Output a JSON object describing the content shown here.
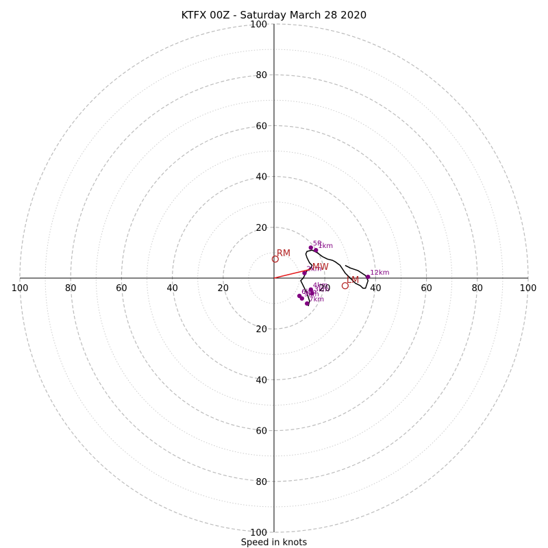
{
  "chart_data": {
    "type": "line",
    "title": "KTFX 00Z - Saturday March 28 2020",
    "xlabel": "Speed in knots",
    "ylabel": "",
    "xlim": [
      -100,
      100
    ],
    "ylim": [
      -100,
      100
    ],
    "ring_major": [
      20,
      40,
      60,
      80,
      100
    ],
    "ring_minor": [
      10,
      30,
      50,
      70,
      90
    ],
    "tick_labels": [
      "20",
      "40",
      "60",
      "80",
      "100"
    ],
    "colors": {
      "hodograph": "#000000",
      "points": "#800080",
      "motion": "#b22222",
      "mean_wind_vector": "#e41a1c",
      "major_ring": "#bbbbbb",
      "minor_ring": "#cccccc",
      "axes": "#000000"
    },
    "hodograph": {
      "x": [
        13.5,
        14,
        13,
        12,
        10.5,
        11.5,
        12.5,
        13,
        14.5,
        15,
        14,
        13,
        12.5,
        13,
        15,
        17,
        19,
        21,
        23,
        24,
        26,
        27,
        28,
        30,
        32,
        34,
        35,
        36,
        37,
        36,
        33,
        30,
        28
      ],
      "y": [
        -11,
        -9,
        -6,
        -4,
        -1,
        0,
        2,
        3,
        4,
        5,
        6,
        8,
        9.5,
        10.5,
        11,
        10,
        8.5,
        7.5,
        7,
        6.5,
        5,
        3.5,
        2,
        0,
        -2,
        -3,
        -4,
        -4,
        -1,
        1,
        3,
        4,
        5
      ]
    },
    "height_points": [
      {
        "label": "5ft",
        "x": 14.5,
        "y": 12
      },
      {
        "label": "1km",
        "x": 16.5,
        "y": 11
      },
      {
        "label": "2km",
        "x": 12,
        "y": 2
      },
      {
        "label": "3km",
        "x": 15,
        "y": -6
      },
      {
        "label": "4km",
        "x": 14.5,
        "y": -4.5
      },
      {
        "label": "6km",
        "x": 10,
        "y": -7
      },
      {
        "label": "7km",
        "x": 13,
        "y": -10
      },
      {
        "label": "9km",
        "x": 11,
        "y": -8
      },
      {
        "label": "12km",
        "x": 37,
        "y": 0.5
      }
    ],
    "storm_motions": [
      {
        "label": "RM",
        "x": 0.5,
        "y": 7.5
      },
      {
        "label": "LM",
        "x": 28,
        "y": -3
      }
    ],
    "mean_wind": {
      "label": "MW",
      "x": 14.5,
      "y": 3.5
    }
  }
}
